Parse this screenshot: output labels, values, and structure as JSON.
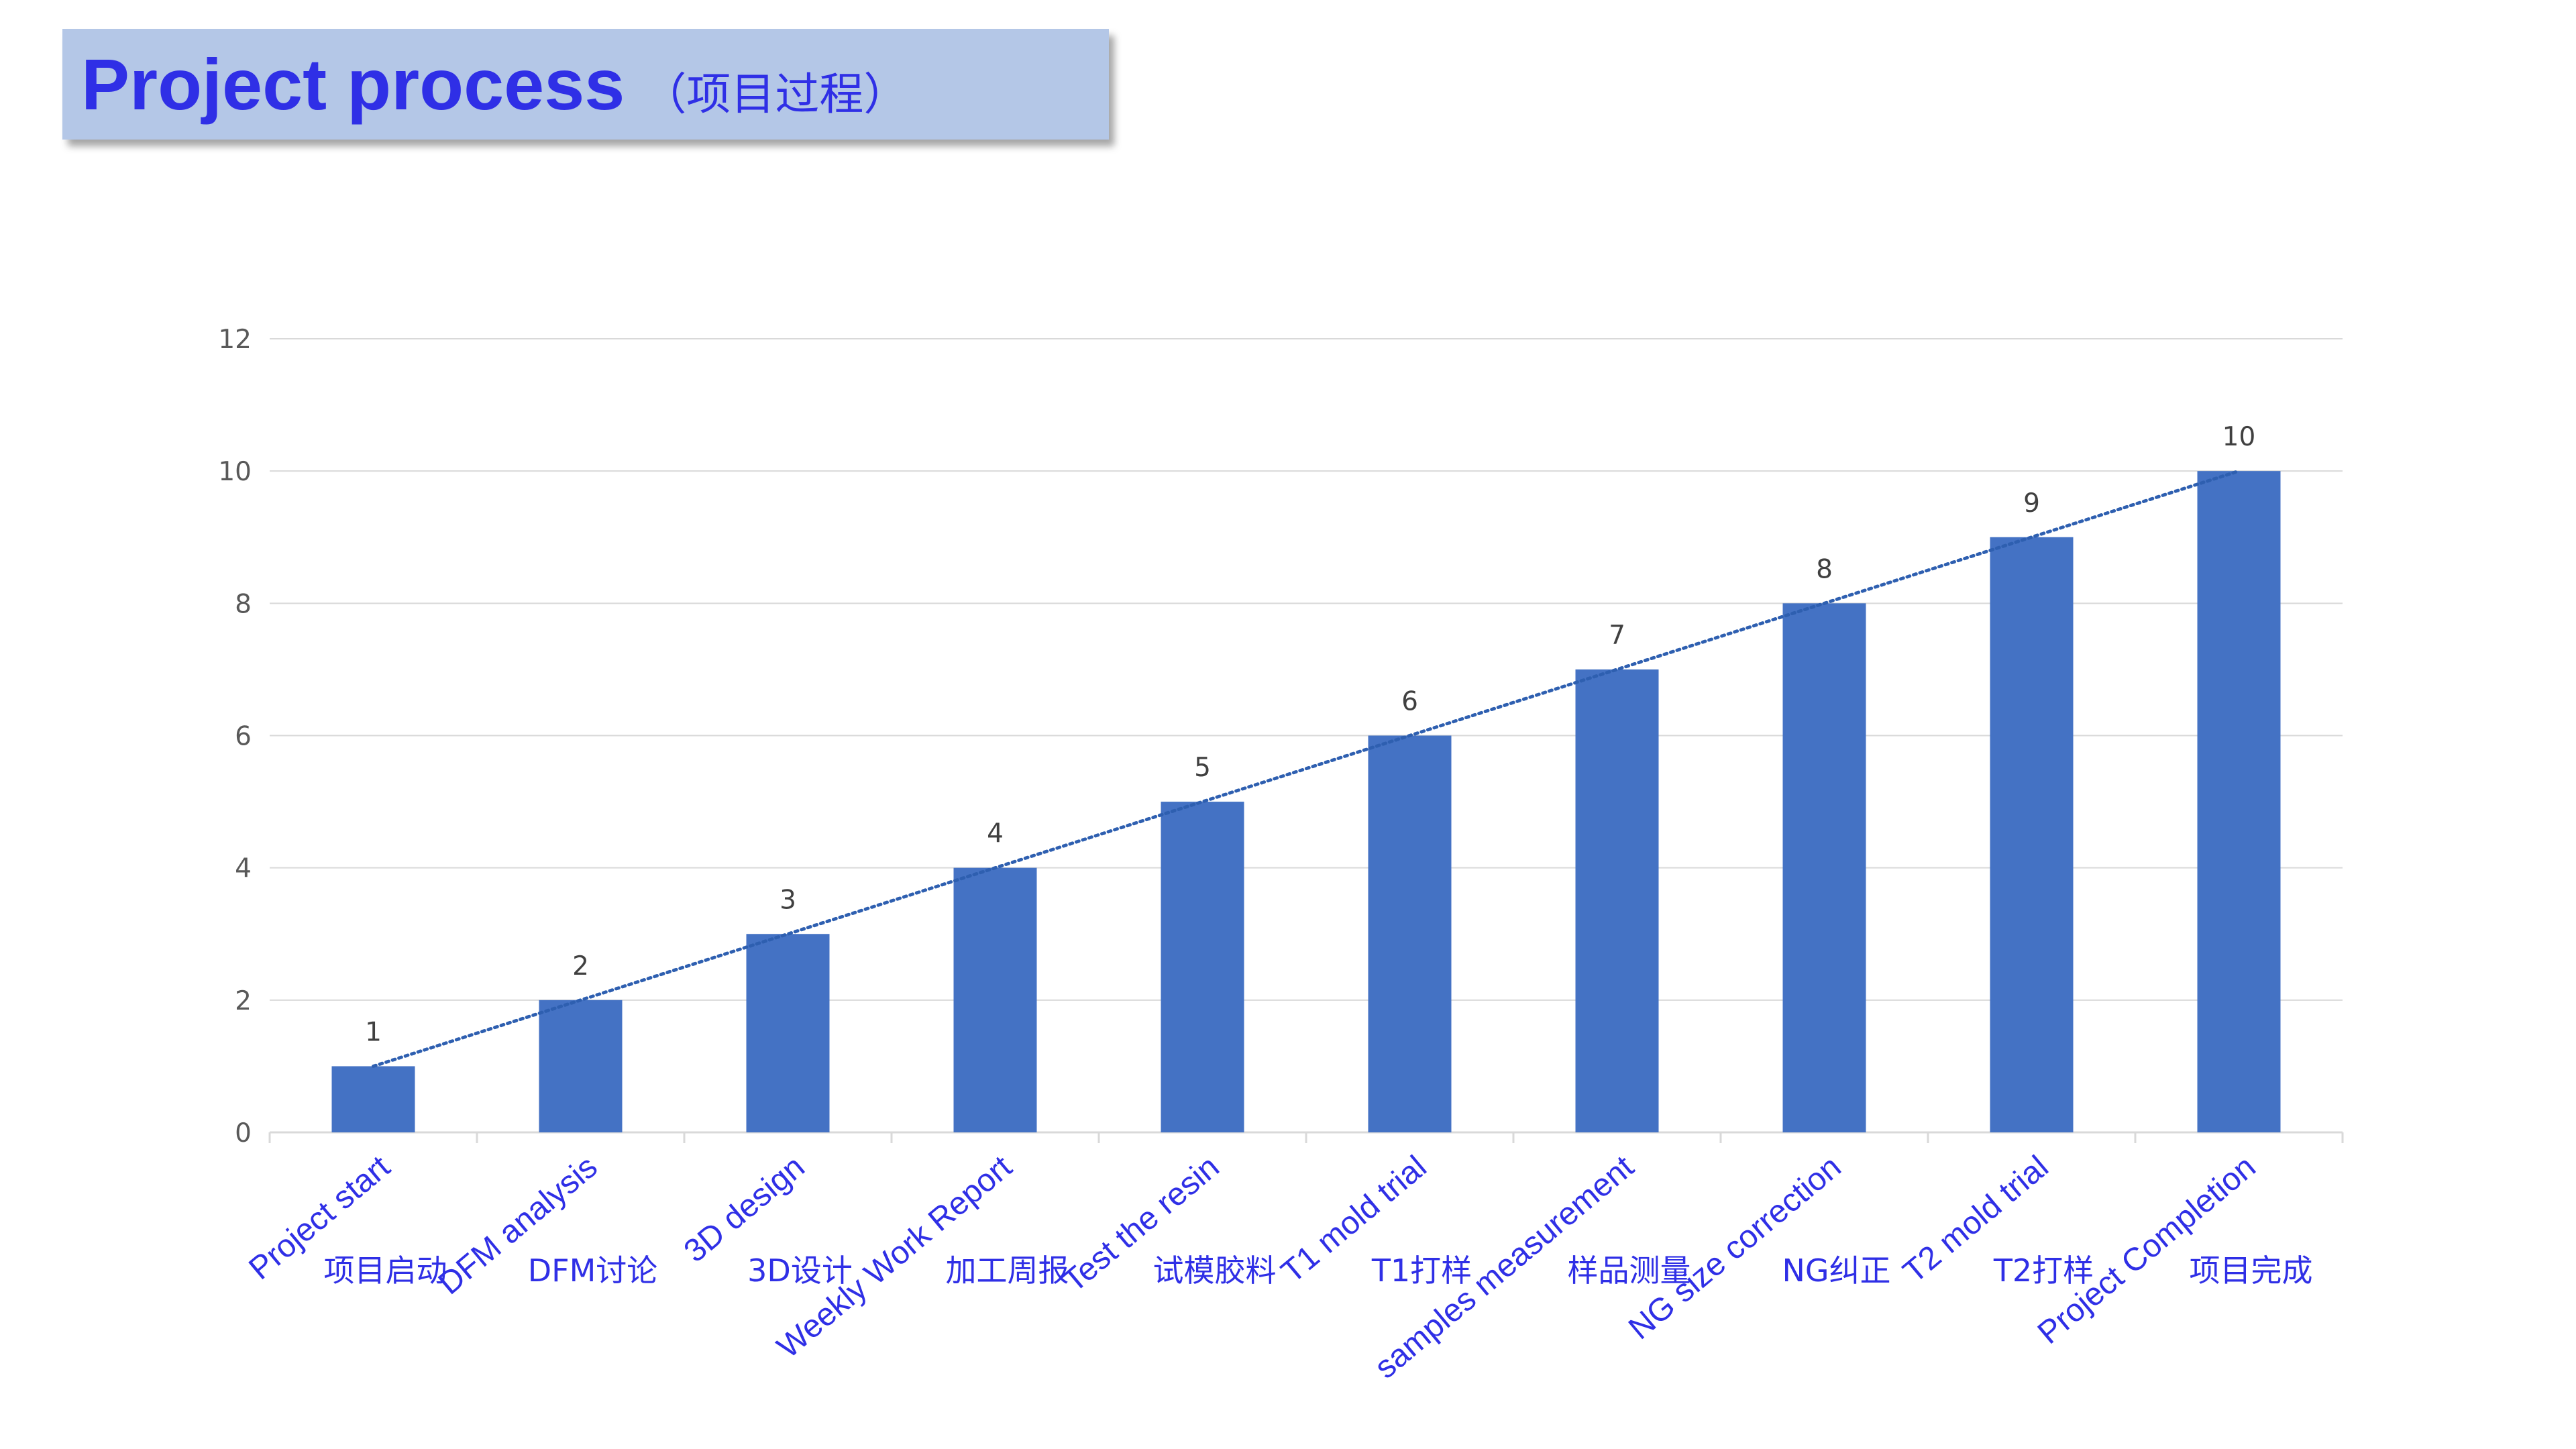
{
  "header": {
    "title": "Project process",
    "subtitle": "（项目过程）"
  },
  "colors": {
    "bar": "#4472c4",
    "trendline": "#2e5fb0",
    "gridline": "#d9d9d9",
    "label_text": "#2f2fe6",
    "title_bg": "#b4c7e7"
  },
  "chart_data": {
    "type": "bar",
    "categories": [
      {
        "en": "Project start",
        "zh": "项目启动"
      },
      {
        "en": "DFM analysis",
        "zh": "DFM讨论"
      },
      {
        "en": "3D design",
        "zh": "3D设计"
      },
      {
        "en": "Weekly Work Report",
        "zh": "加工周报"
      },
      {
        "en": "Test the resin",
        "zh": "试模胶料"
      },
      {
        "en": "T1 mold trial",
        "zh": "T1打样"
      },
      {
        "en": "samples measurement",
        "zh": "样品测量"
      },
      {
        "en": "NG size correction",
        "zh": "NG纠正"
      },
      {
        "en": "T2 mold trial",
        "zh": "T2打样"
      },
      {
        "en": "Project Completion",
        "zh": "项目完成"
      }
    ],
    "values": [
      1,
      2,
      3,
      4,
      5,
      6,
      7,
      8,
      9,
      10
    ],
    "data_labels": [
      "1",
      "2",
      "3",
      "4",
      "5",
      "6",
      "7",
      "8",
      "9",
      "10"
    ],
    "yticks": [
      "0",
      "2",
      "4",
      "6",
      "8",
      "10",
      "12"
    ],
    "ylim": [
      0,
      12
    ],
    "grid": true,
    "trendline": "linear-dotted",
    "legend": "none"
  }
}
